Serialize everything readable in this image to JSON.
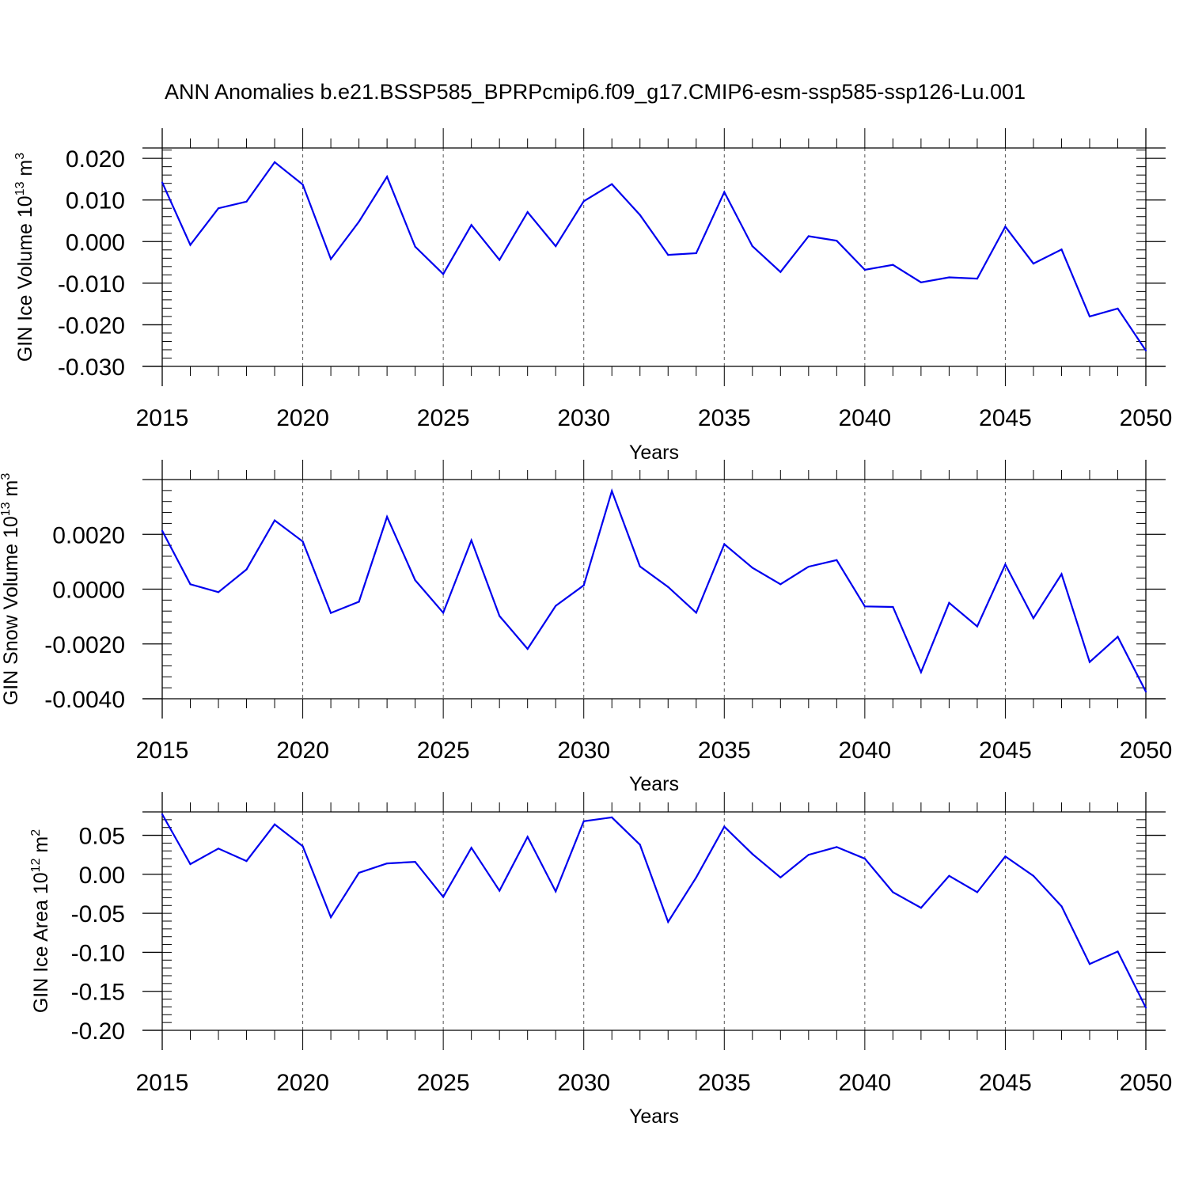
{
  "title": "ANN Anomalies b.e21.BSSP585_BPRPcmip6.f09_g17.CMIP6-esm-ssp585-ssp126-Lu.001",
  "colors": {
    "line": "#0000ee",
    "axis": "#000000",
    "grid": "#555555"
  },
  "chart_data": [
    {
      "type": "line",
      "title": "",
      "xlabel": "Years",
      "ylabel": {
        "base": "GIN Ice Volume 10",
        "exp": "13",
        "unit": " m",
        "unit_exp": "3"
      },
      "xlim": [
        2015,
        2050
      ],
      "ylim": [
        -0.03,
        0.0225
      ],
      "x_ticks": [
        "2015",
        "2020",
        "2025",
        "2030",
        "2035",
        "2040",
        "2045",
        "2050"
      ],
      "y_ticks": [
        {
          "value": 0.02,
          "label": "0.020"
        },
        {
          "value": 0.01,
          "label": "0.010"
        },
        {
          "value": 0.0,
          "label": "0.000"
        },
        {
          "value": -0.01,
          "label": "-0.010"
        },
        {
          "value": -0.02,
          "label": "-0.020"
        },
        {
          "value": -0.03,
          "label": "-0.030"
        }
      ],
      "y_minor_step": 0.002,
      "x": [
        2015,
        2016,
        2017,
        2018,
        2019,
        2020,
        2021,
        2022,
        2023,
        2024,
        2025,
        2026,
        2027,
        2028,
        2029,
        2030,
        2031,
        2032,
        2033,
        2034,
        2035,
        2036,
        2037,
        2038,
        2039,
        2040,
        2041,
        2042,
        2043,
        2044,
        2045,
        2046,
        2047,
        2048,
        2049,
        2050
      ],
      "values": [
        0.0142,
        -0.0008,
        0.008,
        0.0096,
        0.0191,
        0.0137,
        -0.0042,
        0.0048,
        0.0156,
        -0.0012,
        -0.0078,
        0.004,
        -0.0044,
        0.0071,
        -0.0011,
        0.0097,
        0.0138,
        0.0064,
        -0.0032,
        -0.0028,
        0.0119,
        -0.0011,
        -0.0073,
        0.0013,
        0.0002,
        -0.0068,
        -0.0056,
        -0.0098,
        -0.0086,
        -0.0089,
        0.0036,
        -0.0053,
        -0.0019,
        -0.018,
        -0.0161,
        -0.0262
      ]
    },
    {
      "type": "line",
      "title": "",
      "xlabel": "Years",
      "ylabel": {
        "base": "GIN Snow Volume 10",
        "exp": "13",
        "unit": " m",
        "unit_exp": "3"
      },
      "xlim": [
        2015,
        2050
      ],
      "ylim": [
        -0.004,
        0.004
      ],
      "x_ticks": [
        "2015",
        "2020",
        "2025",
        "2030",
        "2035",
        "2040",
        "2045",
        "2050"
      ],
      "y_ticks": [
        {
          "value": 0.002,
          "label": "0.0020"
        },
        {
          "value": 0.0,
          "label": "0.0000"
        },
        {
          "value": -0.002,
          "label": "-0.0020"
        },
        {
          "value": -0.004,
          "label": "-0.0040"
        }
      ],
      "y_minor_step": 0.0004,
      "x": [
        2015,
        2016,
        2017,
        2018,
        2019,
        2020,
        2021,
        2022,
        2023,
        2024,
        2025,
        2026,
        2027,
        2028,
        2029,
        2030,
        2031,
        2032,
        2033,
        2034,
        2035,
        2036,
        2037,
        2038,
        2039,
        2040,
        2041,
        2042,
        2043,
        2044,
        2045,
        2046,
        2047,
        2048,
        2049,
        2050
      ],
      "values": [
        0.00213,
        0.00018,
        -0.00011,
        0.00072,
        0.00251,
        0.00174,
        -0.00087,
        -0.00046,
        0.00264,
        0.00033,
        -0.00086,
        0.00178,
        -0.00098,
        -0.00218,
        -0.00061,
        0.00014,
        0.00358,
        0.00083,
        8e-05,
        -0.00086,
        0.00164,
        0.00078,
        0.00018,
        0.00082,
        0.00106,
        -0.00063,
        -0.00065,
        -0.00303,
        -0.0005,
        -0.00136,
        0.0009,
        -0.00106,
        0.00055,
        -0.00266,
        -0.00174,
        -0.00374
      ]
    },
    {
      "type": "line",
      "title": "",
      "xlabel": "Years",
      "ylabel": {
        "base": "GIN Ice Area 10",
        "exp": "12",
        "unit": " m",
        "unit_exp": "2"
      },
      "xlim": [
        2015,
        2050
      ],
      "ylim": [
        -0.2,
        0.08
      ],
      "x_ticks": [
        "2015",
        "2020",
        "2025",
        "2030",
        "2035",
        "2040",
        "2045",
        "2050"
      ],
      "y_ticks": [
        {
          "value": 0.05,
          "label": "0.05"
        },
        {
          "value": 0.0,
          "label": "0.00"
        },
        {
          "value": -0.05,
          "label": "-0.05"
        },
        {
          "value": -0.1,
          "label": "-0.10"
        },
        {
          "value": -0.15,
          "label": "-0.15"
        },
        {
          "value": -0.2,
          "label": "-0.20"
        }
      ],
      "y_minor_step": 0.01,
      "x": [
        2015,
        2016,
        2017,
        2018,
        2019,
        2020,
        2021,
        2022,
        2023,
        2024,
        2025,
        2026,
        2027,
        2028,
        2029,
        2030,
        2031,
        2032,
        2033,
        2034,
        2035,
        2036,
        2037,
        2038,
        2039,
        2040,
        2041,
        2042,
        2043,
        2044,
        2045,
        2046,
        2047,
        2048,
        2049,
        2050
      ],
      "values": [
        0.077,
        0.013,
        0.033,
        0.017,
        0.064,
        0.036,
        -0.055,
        0.002,
        0.014,
        0.016,
        -0.029,
        0.034,
        -0.021,
        0.048,
        -0.022,
        0.068,
        0.073,
        0.038,
        -0.061,
        -0.004,
        0.061,
        0.026,
        -0.004,
        0.025,
        0.035,
        0.02,
        -0.023,
        -0.043,
        -0.002,
        -0.023,
        0.023,
        -0.002,
        -0.041,
        -0.115,
        -0.099,
        -0.171
      ]
    }
  ]
}
